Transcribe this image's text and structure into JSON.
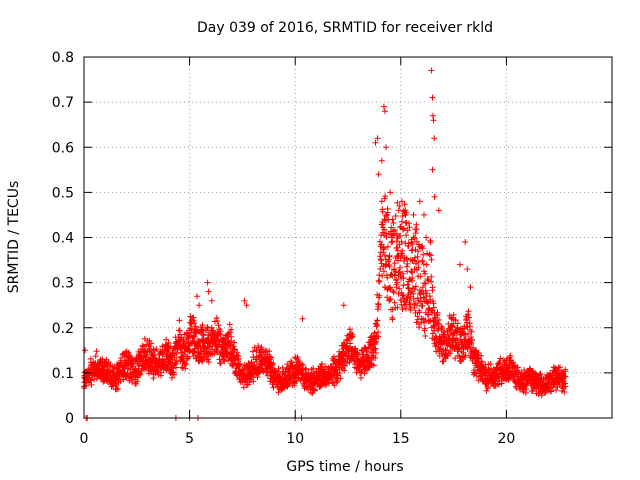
{
  "chart_data": {
    "type": "scatter",
    "title": "Day 039 of 2016, SRMTID for receiver rkld",
    "xlabel": "GPS time / hours",
    "ylabel": "SRMTID / TECUs",
    "xlim": [
      0,
      25
    ],
    "ylim": [
      0,
      0.8
    ],
    "xticks": [
      0,
      5,
      10,
      15,
      20
    ],
    "xtick_labels": [
      "0",
      "5",
      "10",
      "15",
      "20"
    ],
    "yticks": [
      0,
      0.1,
      0.2,
      0.3,
      0.4,
      0.5,
      0.6,
      0.7,
      0.8
    ],
    "ytick_labels": [
      "0",
      "0.1",
      "0.2",
      "0.3",
      "0.4",
      "0.5",
      "0.6",
      "0.7",
      "0.8"
    ],
    "grid": true,
    "marker": "+",
    "marker_color": "#ff0000",
    "series": [
      {
        "name": "SRMTID",
        "profile_x": [
          0.0,
          0.3,
          0.6,
          0.9,
          1.2,
          1.5,
          1.8,
          2.1,
          2.4,
          2.7,
          3.0,
          3.3,
          3.6,
          3.9,
          4.2,
          4.5,
          4.8,
          5.1,
          5.4,
          5.7,
          6.0,
          6.3,
          6.6,
          6.9,
          7.2,
          7.5,
          7.8,
          8.1,
          8.4,
          8.7,
          9.0,
          9.3,
          9.6,
          9.9,
          10.2,
          10.5,
          10.8,
          11.1,
          11.4,
          11.7,
          12.0,
          12.3,
          12.6,
          12.9,
          13.2,
          13.5,
          13.8,
          14.0,
          14.2,
          14.4,
          14.6,
          14.8,
          15.0,
          15.2,
          15.4,
          15.6,
          15.8,
          16.0,
          16.2,
          16.4,
          16.6,
          16.8,
          17.0,
          17.2,
          17.4,
          17.6,
          17.8,
          18.0,
          18.2,
          18.4,
          18.6,
          18.8,
          19.0,
          19.3,
          19.6,
          19.9,
          20.2,
          20.5,
          20.8,
          21.1,
          21.4,
          21.7,
          22.0,
          22.3,
          22.6,
          22.8
        ],
        "profile_y": [
          0.08,
          0.1,
          0.12,
          0.11,
          0.1,
          0.09,
          0.11,
          0.12,
          0.1,
          0.13,
          0.14,
          0.12,
          0.13,
          0.14,
          0.12,
          0.17,
          0.14,
          0.19,
          0.15,
          0.17,
          0.16,
          0.18,
          0.15,
          0.17,
          0.12,
          0.09,
          0.1,
          0.12,
          0.13,
          0.12,
          0.09,
          0.08,
          0.09,
          0.1,
          0.11,
          0.09,
          0.08,
          0.09,
          0.1,
          0.1,
          0.11,
          0.14,
          0.16,
          0.13,
          0.12,
          0.14,
          0.16,
          0.3,
          0.4,
          0.34,
          0.33,
          0.38,
          0.34,
          0.36,
          0.33,
          0.34,
          0.31,
          0.3,
          0.26,
          0.3,
          0.2,
          0.18,
          0.16,
          0.17,
          0.19,
          0.18,
          0.16,
          0.17,
          0.2,
          0.14,
          0.12,
          0.11,
          0.09,
          0.09,
          0.1,
          0.1,
          0.11,
          0.09,
          0.08,
          0.09,
          0.08,
          0.07,
          0.08,
          0.09,
          0.09,
          0.08
        ],
        "outliers": [
          [
            0.1,
            0.0
          ],
          [
            0.15,
            0.0
          ],
          [
            4.35,
            0.0
          ],
          [
            5.0,
            0.0
          ],
          [
            5.4,
            0.0
          ],
          [
            10.0,
            0.0
          ],
          [
            10.3,
            0.0
          ],
          [
            0.05,
            0.15
          ],
          [
            5.35,
            0.27
          ],
          [
            5.45,
            0.25
          ],
          [
            5.85,
            0.3
          ],
          [
            5.9,
            0.28
          ],
          [
            6.05,
            0.26
          ],
          [
            7.6,
            0.26
          ],
          [
            7.7,
            0.25
          ],
          [
            10.35,
            0.22
          ],
          [
            12.3,
            0.25
          ],
          [
            13.8,
            0.61
          ],
          [
            13.9,
            0.62
          ],
          [
            13.95,
            0.54
          ],
          [
            14.1,
            0.57
          ],
          [
            14.2,
            0.69
          ],
          [
            14.25,
            0.68
          ],
          [
            14.3,
            0.6
          ],
          [
            14.1,
            0.48
          ],
          [
            14.35,
            0.45
          ],
          [
            14.5,
            0.5
          ],
          [
            14.6,
            0.44
          ],
          [
            14.9,
            0.46
          ],
          [
            15.05,
            0.48
          ],
          [
            15.15,
            0.42
          ],
          [
            15.6,
            0.45
          ],
          [
            15.9,
            0.48
          ],
          [
            16.1,
            0.45
          ],
          [
            16.2,
            0.4
          ],
          [
            16.45,
            0.77
          ],
          [
            16.5,
            0.71
          ],
          [
            16.52,
            0.67
          ],
          [
            16.55,
            0.66
          ],
          [
            16.58,
            0.62
          ],
          [
            16.5,
            0.55
          ],
          [
            16.6,
            0.49
          ],
          [
            16.8,
            0.46
          ],
          [
            17.8,
            0.34
          ],
          [
            18.05,
            0.39
          ],
          [
            18.15,
            0.33
          ],
          [
            18.3,
            0.29
          ]
        ]
      }
    ]
  }
}
